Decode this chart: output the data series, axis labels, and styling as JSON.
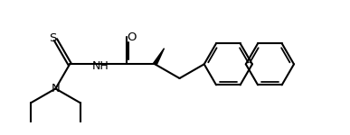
{
  "background": "#ffffff",
  "line_color": "#000000",
  "bond_width": 1.5,
  "label_color": "#000000",
  "figsize": [
    3.87,
    1.5
  ],
  "dpi": 100,
  "xlim": [
    0.0,
    10.0
  ],
  "ylim": [
    0.0,
    3.87
  ],
  "S_label": "S",
  "N_label": "N",
  "NH_label": "NH",
  "O_label": "O"
}
